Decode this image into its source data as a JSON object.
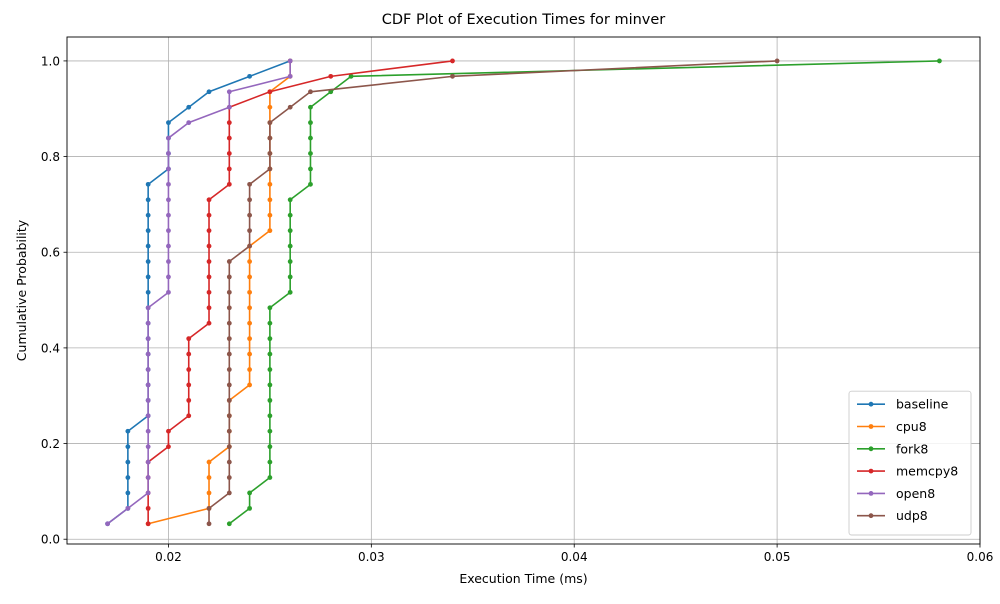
{
  "chart_data": {
    "type": "line",
    "title": "CDF Plot of Execution Times for minver",
    "xlabel": "Execution Time (ms)",
    "ylabel": "Cumulative Probability",
    "xlim": [
      0.015,
      0.06
    ],
    "ylim": [
      -0.01,
      1.05
    ],
    "xticks": [
      0.02,
      0.03,
      0.04,
      0.05,
      0.06
    ],
    "xtick_labels": [
      "0.02",
      "0.03",
      "0.04",
      "0.05",
      "0.06"
    ],
    "yticks": [
      0.0,
      0.2,
      0.4,
      0.6,
      0.8,
      1.0
    ],
    "ytick_labels": [
      "0.0",
      "0.2",
      "0.4",
      "0.6",
      "0.8",
      "1.0"
    ],
    "grid": true,
    "legend_position": "lower-right",
    "series": [
      {
        "name": "baseline",
        "color": "#1f77b4",
        "x": [
          0.017,
          0.018,
          0.018,
          0.018,
          0.018,
          0.018,
          0.018,
          0.019,
          0.019,
          0.019,
          0.019,
          0.019,
          0.019,
          0.019,
          0.019,
          0.019,
          0.019,
          0.019,
          0.019,
          0.019,
          0.019,
          0.019,
          0.019,
          0.02,
          0.02,
          0.02,
          0.02,
          0.021,
          0.022,
          0.024,
          0.026
        ],
        "y": [
          0.0323,
          0.0645,
          0.0968,
          0.129,
          0.1613,
          0.1935,
          0.2258,
          0.2581,
          0.2903,
          0.3226,
          0.3548,
          0.3871,
          0.4194,
          0.4516,
          0.4839,
          0.5161,
          0.5484,
          0.5806,
          0.6129,
          0.6452,
          0.6774,
          0.7097,
          0.7419,
          0.7742,
          0.8065,
          0.8387,
          0.871,
          0.9032,
          0.9355,
          0.9677,
          1.0
        ]
      },
      {
        "name": "cpu8",
        "color": "#ff7f0e",
        "x": [
          0.019,
          0.022,
          0.022,
          0.022,
          0.022,
          0.023,
          0.023,
          0.023,
          0.023,
          0.024,
          0.024,
          0.024,
          0.024,
          0.024,
          0.024,
          0.024,
          0.024,
          0.024,
          0.024,
          0.025,
          0.025,
          0.025,
          0.025,
          0.025,
          0.025,
          0.025,
          0.025,
          0.025,
          0.025,
          0.026,
          0.026
        ],
        "y": [
          0.0323,
          0.0645,
          0.0968,
          0.129,
          0.1613,
          0.1935,
          0.2258,
          0.2581,
          0.2903,
          0.3226,
          0.3548,
          0.3871,
          0.4194,
          0.4516,
          0.4839,
          0.5161,
          0.5484,
          0.5806,
          0.6129,
          0.6452,
          0.6774,
          0.7097,
          0.7419,
          0.7742,
          0.8065,
          0.8387,
          0.871,
          0.9032,
          0.9355,
          0.9677,
          1.0
        ]
      },
      {
        "name": "fork8",
        "color": "#2ca02c",
        "x": [
          0.023,
          0.024,
          0.024,
          0.025,
          0.025,
          0.025,
          0.025,
          0.025,
          0.025,
          0.025,
          0.025,
          0.025,
          0.025,
          0.025,
          0.025,
          0.026,
          0.026,
          0.026,
          0.026,
          0.026,
          0.026,
          0.026,
          0.027,
          0.027,
          0.027,
          0.027,
          0.027,
          0.027,
          0.028,
          0.029,
          0.058
        ],
        "y": [
          0.0323,
          0.0645,
          0.0968,
          0.129,
          0.1613,
          0.1935,
          0.2258,
          0.2581,
          0.2903,
          0.3226,
          0.3548,
          0.3871,
          0.4194,
          0.4516,
          0.4839,
          0.5161,
          0.5484,
          0.5806,
          0.6129,
          0.6452,
          0.6774,
          0.7097,
          0.7419,
          0.7742,
          0.8065,
          0.8387,
          0.871,
          0.9032,
          0.9355,
          0.9677,
          1.0
        ]
      },
      {
        "name": "memcpy8",
        "color": "#d62728",
        "x": [
          0.019,
          0.019,
          0.019,
          0.019,
          0.019,
          0.02,
          0.02,
          0.021,
          0.021,
          0.021,
          0.021,
          0.021,
          0.021,
          0.022,
          0.022,
          0.022,
          0.022,
          0.022,
          0.022,
          0.022,
          0.022,
          0.022,
          0.023,
          0.023,
          0.023,
          0.023,
          0.023,
          0.023,
          0.025,
          0.028,
          0.034
        ],
        "y": [
          0.0323,
          0.0645,
          0.0968,
          0.129,
          0.1613,
          0.1935,
          0.2258,
          0.2581,
          0.2903,
          0.3226,
          0.3548,
          0.3871,
          0.4194,
          0.4516,
          0.4839,
          0.5161,
          0.5484,
          0.5806,
          0.6129,
          0.6452,
          0.6774,
          0.7097,
          0.7419,
          0.7742,
          0.8065,
          0.8387,
          0.871,
          0.9032,
          0.9355,
          0.9677,
          1.0
        ]
      },
      {
        "name": "open8",
        "color": "#9467bd",
        "x": [
          0.017,
          0.018,
          0.019,
          0.019,
          0.019,
          0.019,
          0.019,
          0.019,
          0.019,
          0.019,
          0.019,
          0.019,
          0.019,
          0.019,
          0.019,
          0.02,
          0.02,
          0.02,
          0.02,
          0.02,
          0.02,
          0.02,
          0.02,
          0.02,
          0.02,
          0.02,
          0.021,
          0.023,
          0.023,
          0.026,
          0.026
        ],
        "y": [
          0.0323,
          0.0645,
          0.0968,
          0.129,
          0.1613,
          0.1935,
          0.2258,
          0.2581,
          0.2903,
          0.3226,
          0.3548,
          0.3871,
          0.4194,
          0.4516,
          0.4839,
          0.5161,
          0.5484,
          0.5806,
          0.6129,
          0.6452,
          0.6774,
          0.7097,
          0.7419,
          0.7742,
          0.8065,
          0.8387,
          0.871,
          0.9032,
          0.9355,
          0.9677,
          1.0
        ]
      },
      {
        "name": "udp8",
        "color": "#8c564b",
        "x": [
          0.022,
          0.022,
          0.023,
          0.023,
          0.023,
          0.023,
          0.023,
          0.023,
          0.023,
          0.023,
          0.023,
          0.023,
          0.023,
          0.023,
          0.023,
          0.023,
          0.023,
          0.023,
          0.024,
          0.024,
          0.024,
          0.024,
          0.024,
          0.025,
          0.025,
          0.025,
          0.025,
          0.026,
          0.027,
          0.034,
          0.05
        ],
        "y": [
          0.0323,
          0.0645,
          0.0968,
          0.129,
          0.1613,
          0.1935,
          0.2258,
          0.2581,
          0.2903,
          0.3226,
          0.3548,
          0.3871,
          0.4194,
          0.4516,
          0.4839,
          0.5161,
          0.5484,
          0.5806,
          0.6129,
          0.6452,
          0.6774,
          0.7097,
          0.7419,
          0.7742,
          0.8065,
          0.8387,
          0.871,
          0.9032,
          0.9355,
          0.9677,
          1.0
        ]
      }
    ]
  }
}
